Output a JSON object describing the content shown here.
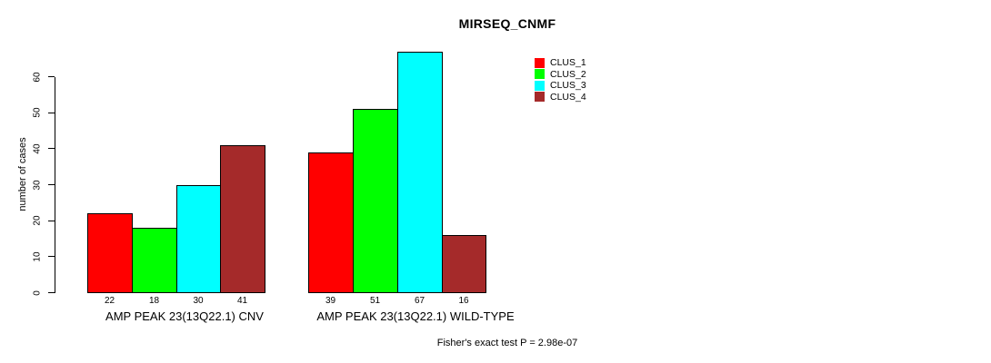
{
  "chart_data": {
    "type": "bar",
    "title": "MIRSEQ_CNMF",
    "ylabel": "number of cases",
    "xlabel": "",
    "yticks": [
      0,
      10,
      20,
      30,
      40,
      50,
      60
    ],
    "ylim": [
      0,
      67
    ],
    "grid": false,
    "legend_position": "top-right",
    "categories": [
      "AMP PEAK 23(13Q22.1) CNV",
      "AMP PEAK 23(13Q22.1) WILD-TYPE"
    ],
    "series": [
      {
        "name": "CLUS_1",
        "color": "#ff0000",
        "values": [
          22,
          39
        ]
      },
      {
        "name": "CLUS_2",
        "color": "#00ff00",
        "values": [
          18,
          51
        ]
      },
      {
        "name": "CLUS_3",
        "color": "#00ffff",
        "values": [
          30,
          67
        ]
      },
      {
        "name": "CLUS_4",
        "color": "#a52a2a",
        "values": [
          41,
          16
        ]
      }
    ],
    "bar_value_labels": [
      [
        22,
        18,
        30,
        41
      ],
      [
        39,
        51,
        67,
        16
      ]
    ],
    "annotation": "Fisher's exact test P = 2.98e-07"
  }
}
